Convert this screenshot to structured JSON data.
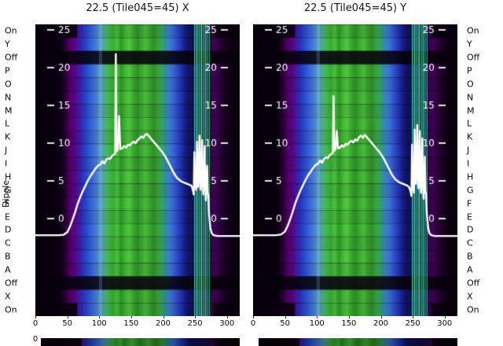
{
  "figure": {
    "ylabel": "Dipole",
    "bottom_partial_tick": "0"
  },
  "chart_data": {
    "type": "heatmap",
    "description": "Two spectrogram-style heatmaps (X and Y polarizations) of dipole rows vs frequency channel, with a white bandpass curve overlaid on each",
    "x_range": [
      0,
      320
    ],
    "x_ticks": [
      0,
      50,
      100,
      150,
      200,
      250,
      300
    ],
    "overlay_ticks": [
      25,
      20,
      15,
      10,
      5,
      0
    ],
    "rows": [
      {
        "label": "On",
        "kind": "edge"
      },
      {
        "label": "Y",
        "kind": "bright"
      },
      {
        "label": "Off",
        "kind": "off"
      },
      {
        "label": "P",
        "kind": "bright"
      },
      {
        "label": "O",
        "kind": "bright"
      },
      {
        "label": "N",
        "kind": "bright"
      },
      {
        "label": "M",
        "kind": "bright"
      },
      {
        "label": "L",
        "kind": "bright"
      },
      {
        "label": "K",
        "kind": "bright"
      },
      {
        "label": "J",
        "kind": "bright"
      },
      {
        "label": "I",
        "kind": "bright"
      },
      {
        "label": "H",
        "kind": "bright"
      },
      {
        "label": "G",
        "kind": "bright"
      },
      {
        "label": "F",
        "kind": "bright"
      },
      {
        "label": "E",
        "kind": "bright"
      },
      {
        "label": "D",
        "kind": "bright"
      },
      {
        "label": "C",
        "kind": "bright"
      },
      {
        "label": "B",
        "kind": "bright"
      },
      {
        "label": "A",
        "kind": "bright"
      },
      {
        "label": "Off",
        "kind": "off"
      },
      {
        "label": "X",
        "kind": "bright"
      },
      {
        "label": "On",
        "kind": "edge"
      }
    ],
    "colormap_stops": [
      [
        0.0,
        "#070009"
      ],
      [
        0.12,
        "#0a0010"
      ],
      [
        0.15,
        "#2e0038"
      ],
      [
        0.17,
        "#50006a"
      ],
      [
        0.19,
        "#5c0082"
      ],
      [
        0.21,
        "#44189c"
      ],
      [
        0.23,
        "#2c30bc"
      ],
      [
        0.255,
        "#2a4ed0"
      ],
      [
        0.28,
        "#3a6ad8"
      ],
      [
        0.305,
        "#4c88d4"
      ],
      [
        0.325,
        "#50a0b4"
      ],
      [
        0.345,
        "#48b478"
      ],
      [
        0.36,
        "#42b84a"
      ],
      [
        0.38,
        "#38ac32"
      ],
      [
        0.4,
        "#48c23c"
      ],
      [
        0.42,
        "#2f9828"
      ],
      [
        0.44,
        "#42b836"
      ],
      [
        0.46,
        "#50c83e"
      ],
      [
        0.48,
        "#3aa830"
      ],
      [
        0.5,
        "#2f9226"
      ],
      [
        0.52,
        "#3ca834"
      ],
      [
        0.54,
        "#48bc3a"
      ],
      [
        0.56,
        "#3aa42e"
      ],
      [
        0.58,
        "#309026"
      ],
      [
        0.6,
        "#38a23c"
      ],
      [
        0.62,
        "#36a464"
      ],
      [
        0.635,
        "#309098"
      ],
      [
        0.65,
        "#3884c4"
      ],
      [
        0.67,
        "#3c6cd4"
      ],
      [
        0.69,
        "#2e50cc"
      ],
      [
        0.71,
        "#2438b4"
      ],
      [
        0.73,
        "#181f8c"
      ],
      [
        0.75,
        "#101460"
      ],
      [
        0.79,
        "#0d1150"
      ],
      [
        0.83,
        "#120e48"
      ],
      [
        0.855,
        "#2a0846"
      ],
      [
        0.875,
        "#3e0054"
      ],
      [
        0.895,
        "#340044"
      ],
      [
        0.915,
        "#220030"
      ],
      [
        0.94,
        "#120018"
      ],
      [
        1.0,
        "#070009"
      ]
    ],
    "bright_lines": [
      [
        102.0,
        4.0,
        "rgba(200,228,255,0.18)"
      ],
      [
        249.5,
        1.4,
        "rgba(60,220,200,0.9)"
      ],
      [
        253.0,
        1.8,
        "rgba(80,228,90,0.95)"
      ],
      [
        256.5,
        1.4,
        "rgba(50,200,235,0.9)"
      ],
      [
        260.0,
        1.8,
        "rgba(86,232,96,0.95)"
      ],
      [
        263.5,
        1.3,
        "rgba(56,210,220,0.85)"
      ],
      [
        266.5,
        1.6,
        "rgba(70,224,80,0.9)"
      ],
      [
        269.5,
        1.2,
        "rgba(50,200,235,0.8)"
      ],
      [
        272.5,
        1.2,
        "rgba(60,212,70,0.8)"
      ]
    ],
    "plots": [
      {
        "title": "22.5 (Tile045=45) X",
        "line": [
          [
            0,
            -2.2
          ],
          [
            12,
            -2.2
          ],
          [
            24,
            -2.2
          ],
          [
            36,
            -2.2
          ],
          [
            44,
            -2.15
          ],
          [
            50,
            -1.8
          ],
          [
            54,
            -1.1
          ],
          [
            58,
            -0.2
          ],
          [
            62,
            0.8
          ],
          [
            66,
            1.9
          ],
          [
            70,
            2.8
          ],
          [
            74,
            3.6
          ],
          [
            78,
            4.3
          ],
          [
            82,
            5.0
          ],
          [
            86,
            5.6
          ],
          [
            90,
            6.1
          ],
          [
            94,
            6.6
          ],
          [
            98,
            7.0
          ],
          [
            102,
            7.2
          ],
          [
            105,
            7.6
          ],
          [
            108,
            7.3
          ],
          [
            111,
            7.8
          ],
          [
            114,
            8.0
          ],
          [
            117,
            7.9
          ],
          [
            120,
            8.3
          ],
          [
            123,
            8.5
          ],
          [
            125,
            8.6
          ],
          [
            126,
            21.8
          ],
          [
            127,
            8.9
          ],
          [
            129,
            9.1
          ],
          [
            131,
            13.6
          ],
          [
            133,
            9.2
          ],
          [
            136,
            9.3
          ],
          [
            139,
            9.6
          ],
          [
            142,
            9.4
          ],
          [
            145,
            9.8
          ],
          [
            148,
            9.7
          ],
          [
            151,
            10.0
          ],
          [
            154,
            10.2
          ],
          [
            157,
            10.0
          ],
          [
            160,
            10.4
          ],
          [
            163,
            10.6
          ],
          [
            166,
            10.9
          ],
          [
            169,
            10.7
          ],
          [
            172,
            11.1
          ],
          [
            175,
            11.2
          ],
          [
            178,
            10.9
          ],
          [
            181,
            10.6
          ],
          [
            184,
            10.3
          ],
          [
            187,
            10.0
          ],
          [
            190,
            9.7
          ],
          [
            193,
            9.4
          ],
          [
            196,
            9.1
          ],
          [
            199,
            8.8
          ],
          [
            202,
            8.4
          ],
          [
            205,
            8.0
          ],
          [
            208,
            7.5
          ],
          [
            211,
            7.0
          ],
          [
            214,
            6.5
          ],
          [
            217,
            6.0
          ],
          [
            220,
            5.6
          ],
          [
            223,
            5.3
          ],
          [
            226,
            5.1
          ],
          [
            229,
            4.9
          ],
          [
            232,
            4.8
          ],
          [
            235,
            4.7
          ],
          [
            238,
            4.6
          ],
          [
            241,
            4.5
          ],
          [
            244,
            4.4
          ],
          [
            246,
            4.0
          ],
          [
            248,
            3.2
          ],
          [
            249,
            8.8
          ],
          [
            250,
            4.6
          ],
          [
            252,
            3.8
          ],
          [
            253,
            10.2
          ],
          [
            254,
            5.0
          ],
          [
            255,
            4.2
          ],
          [
            257,
            11.0
          ],
          [
            258,
            5.2
          ],
          [
            259,
            3.8
          ],
          [
            261,
            10.4
          ],
          [
            262,
            5.0
          ],
          [
            263,
            3.2
          ],
          [
            265,
            9.6
          ],
          [
            266,
            4.4
          ],
          [
            267,
            2.4
          ],
          [
            269,
            7.0
          ],
          [
            270,
            3.4
          ],
          [
            271,
            3.0
          ],
          [
            272,
            0.6
          ],
          [
            274,
            -1.2
          ],
          [
            276,
            -1.9
          ],
          [
            279,
            -2.2
          ],
          [
            285,
            -2.3
          ],
          [
            295,
            -2.3
          ],
          [
            305,
            -2.3
          ],
          [
            320,
            -2.3
          ]
        ]
      },
      {
        "title": "22.5 (Tile045=45) Y",
        "line": [
          [
            0,
            -2.2
          ],
          [
            12,
            -2.2
          ],
          [
            24,
            -2.2
          ],
          [
            36,
            -2.2
          ],
          [
            44,
            -2.1
          ],
          [
            50,
            -1.7
          ],
          [
            54,
            -1.0
          ],
          [
            58,
            -0.1
          ],
          [
            62,
            0.9
          ],
          [
            66,
            2.0
          ],
          [
            70,
            2.9
          ],
          [
            74,
            3.7
          ],
          [
            78,
            4.4
          ],
          [
            82,
            5.1
          ],
          [
            86,
            5.7
          ],
          [
            90,
            6.2
          ],
          [
            94,
            6.7
          ],
          [
            98,
            7.1
          ],
          [
            102,
            7.3
          ],
          [
            105,
            7.7
          ],
          [
            108,
            7.4
          ],
          [
            111,
            7.9
          ],
          [
            114,
            8.1
          ],
          [
            117,
            8.0
          ],
          [
            120,
            8.4
          ],
          [
            123,
            8.6
          ],
          [
            125,
            8.7
          ],
          [
            126,
            16.2
          ],
          [
            127,
            9.0
          ],
          [
            129,
            9.2
          ],
          [
            131,
            11.6
          ],
          [
            133,
            9.3
          ],
          [
            136,
            9.4
          ],
          [
            139,
            9.7
          ],
          [
            142,
            9.5
          ],
          [
            145,
            9.9
          ],
          [
            148,
            9.8
          ],
          [
            151,
            10.1
          ],
          [
            154,
            10.3
          ],
          [
            157,
            10.1
          ],
          [
            160,
            10.5
          ],
          [
            163,
            10.3
          ],
          [
            166,
            10.8
          ],
          [
            169,
            11.0
          ],
          [
            172,
            10.7
          ],
          [
            175,
            11.1
          ],
          [
            178,
            10.8
          ],
          [
            181,
            10.5
          ],
          [
            184,
            10.2
          ],
          [
            187,
            9.9
          ],
          [
            190,
            9.6
          ],
          [
            193,
            9.3
          ],
          [
            196,
            9.0
          ],
          [
            199,
            8.7
          ],
          [
            202,
            8.3
          ],
          [
            205,
            7.9
          ],
          [
            208,
            7.4
          ],
          [
            211,
            6.9
          ],
          [
            214,
            6.4
          ],
          [
            217,
            5.9
          ],
          [
            220,
            5.5
          ],
          [
            223,
            5.2
          ],
          [
            226,
            5.0
          ],
          [
            229,
            4.8
          ],
          [
            232,
            4.7
          ],
          [
            235,
            4.6
          ],
          [
            238,
            4.5
          ],
          [
            241,
            4.4
          ],
          [
            244,
            4.2
          ],
          [
            246,
            3.8
          ],
          [
            248,
            3.0
          ],
          [
            249,
            9.8
          ],
          [
            250,
            4.8
          ],
          [
            252,
            3.4
          ],
          [
            253,
            11.8
          ],
          [
            254,
            5.4
          ],
          [
            255,
            4.6
          ],
          [
            257,
            12.4
          ],
          [
            258,
            5.6
          ],
          [
            259,
            4.0
          ],
          [
            261,
            11.6
          ],
          [
            262,
            5.2
          ],
          [
            263,
            3.4
          ],
          [
            265,
            10.6
          ],
          [
            266,
            4.6
          ],
          [
            267,
            2.6
          ],
          [
            269,
            8.2
          ],
          [
            270,
            3.6
          ],
          [
            271,
            3.2
          ],
          [
            272,
            0.8
          ],
          [
            274,
            -1.1
          ],
          [
            276,
            -1.9
          ],
          [
            279,
            -2.2
          ],
          [
            285,
            -2.3
          ],
          [
            295,
            -2.3
          ],
          [
            305,
            -2.3
          ],
          [
            320,
            -2.3
          ]
        ]
      }
    ]
  }
}
